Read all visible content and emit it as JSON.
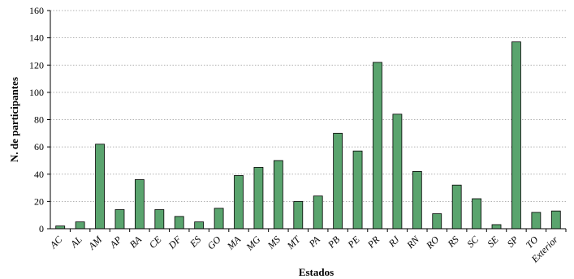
{
  "chart_data": {
    "type": "bar",
    "title": "",
    "xlabel": "Estados",
    "ylabel": "N. de participantes",
    "ylim": [
      0,
      160
    ],
    "yticks": [
      0,
      20,
      40,
      60,
      80,
      100,
      120,
      140,
      160
    ],
    "grid": true,
    "legend": "none",
    "bar_color": "#5aa46e",
    "bar_edge_color": "#000000",
    "categories": [
      "AC",
      "AL",
      "AM",
      "AP",
      "BA",
      "CE",
      "DF",
      "ES",
      "GO",
      "MA",
      "MG",
      "MS",
      "MT",
      "PA",
      "PB",
      "PE",
      "PR",
      "RJ",
      "RN",
      "RO",
      "RS",
      "SC",
      "SE",
      "SP",
      "TO",
      "Exterior"
    ],
    "values": [
      2,
      5,
      62,
      14,
      36,
      14,
      9,
      5,
      15,
      39,
      45,
      50,
      20,
      24,
      70,
      57,
      122,
      84,
      42,
      11,
      32,
      22,
      3,
      137,
      12,
      13
    ]
  }
}
